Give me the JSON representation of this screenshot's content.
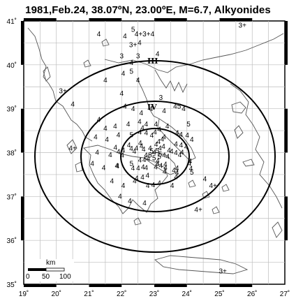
{
  "title": "1981,Feb.24, 38.07ºN, 23.00ºE, M=6.7, Alkyonides",
  "longitude_ticks": [
    "19˚",
    "20˚",
    "21˚",
    "22˚",
    "23˚",
    "24˚",
    "25˚",
    "26˚",
    "27˚"
  ],
  "latitude_ticks": [
    "41˚",
    "40˚",
    "39˚",
    "38˚",
    "37˚",
    "36˚",
    "35˚"
  ],
  "isoseismal_labels": [
    "III",
    "IV"
  ],
  "scale_bar": {
    "unit": "km",
    "ticks": [
      "0",
      "50",
      "100"
    ]
  },
  "intensity_marks": [
    {
      "t": "4",
      "lon": 21.3,
      "lat": 40.65
    },
    {
      "t": "5",
      "lon": 22.35,
      "lat": 40.75
    },
    {
      "t": "4",
      "lon": 22.1,
      "lat": 40.6
    },
    {
      "t": "4+3+4",
      "lon": 22.7,
      "lat": 40.65
    },
    {
      "t": "4",
      "lon": 22.55,
      "lat": 40.45
    },
    {
      "t": "3+",
      "lon": 22.35,
      "lat": 40.4
    },
    {
      "t": "3+",
      "lon": 25.7,
      "lat": 40.85
    },
    {
      "t": "3",
      "lon": 22.0,
      "lat": 40.15
    },
    {
      "t": "3",
      "lon": 22.5,
      "lat": 40.15
    },
    {
      "t": "4",
      "lon": 22.3,
      "lat": 40.0
    },
    {
      "t": "4",
      "lon": 23.1,
      "lat": 40.2
    },
    {
      "t": "4",
      "lon": 21.5,
      "lat": 39.6
    },
    {
      "t": "5",
      "lon": 22.3,
      "lat": 39.8
    },
    {
      "t": "4",
      "lon": 22.05,
      "lat": 39.75
    },
    {
      "t": "4",
      "lon": 22.5,
      "lat": 39.6
    },
    {
      "t": "4",
      "lon": 22.0,
      "lat": 39.3
    },
    {
      "t": "3+",
      "lon": 20.2,
      "lat": 39.35
    },
    {
      "t": "4",
      "lon": 20.5,
      "lat": 39.05
    },
    {
      "t": "3",
      "lon": 23.2,
      "lat": 39.2
    },
    {
      "t": "4",
      "lon": 22.1,
      "lat": 39.0
    },
    {
      "t": "4",
      "lon": 22.35,
      "lat": 38.95
    },
    {
      "t": "4",
      "lon": 22.6,
      "lat": 38.85
    },
    {
      "t": "4",
      "lon": 22.9,
      "lat": 38.95
    },
    {
      "t": "4",
      "lon": 23.3,
      "lat": 38.9
    },
    {
      "t": "45",
      "lon": 23.7,
      "lat": 39.0
    },
    {
      "t": "4",
      "lon": 23.9,
      "lat": 38.95
    },
    {
      "t": "4",
      "lon": 21.3,
      "lat": 38.7
    },
    {
      "t": "4",
      "lon": 21.5,
      "lat": 38.5
    },
    {
      "t": "4",
      "lon": 21.8,
      "lat": 38.55
    },
    {
      "t": "4",
      "lon": 22.2,
      "lat": 38.6
    },
    {
      "t": "4",
      "lon": 22.55,
      "lat": 38.65
    },
    {
      "t": "4",
      "lon": 23.05,
      "lat": 38.6
    },
    {
      "t": "4",
      "lon": 23.4,
      "lat": 38.55
    },
    {
      "t": "5",
      "lon": 24.05,
      "lat": 38.6
    },
    {
      "t": "4",
      "lon": 21.2,
      "lat": 38.3
    },
    {
      "t": "4",
      "lon": 21.55,
      "lat": 38.25
    },
    {
      "t": "4",
      "lon": 21.9,
      "lat": 38.35
    },
    {
      "t": "5",
      "lon": 22.3,
      "lat": 38.35
    },
    {
      "t": "4",
      "lon": 22.75,
      "lat": 38.4
    },
    {
      "t": "4",
      "lon": 23.3,
      "lat": 38.3
    },
    {
      "t": "4",
      "lon": 23.7,
      "lat": 38.4
    },
    {
      "t": "4",
      "lon": 24.15,
      "lat": 38.25
    },
    {
      "t": "4+",
      "lon": 20.5,
      "lat": 38.05
    },
    {
      "t": "4",
      "lon": 21.25,
      "lat": 37.95
    },
    {
      "t": "4",
      "lon": 21.65,
      "lat": 37.9
    },
    {
      "t": "4",
      "lon": 22.05,
      "lat": 38.0
    },
    {
      "t": "4",
      "lon": 22.45,
      "lat": 38.05
    },
    {
      "t": "4",
      "lon": 23.0,
      "lat": 37.95
    },
    {
      "t": "4",
      "lon": 23.45,
      "lat": 38.0
    },
    {
      "t": "4",
      "lon": 23.85,
      "lat": 37.95
    },
    {
      "t": "4",
      "lon": 24.1,
      "lat": 37.75
    },
    {
      "t": "4",
      "lon": 21.1,
      "lat": 37.7
    },
    {
      "t": "4",
      "lon": 21.45,
      "lat": 37.6
    },
    {
      "t": "4",
      "lon": 21.85,
      "lat": 37.65
    },
    {
      "t": "5",
      "lon": 22.3,
      "lat": 37.7
    },
    {
      "t": "4",
      "lon": 22.75,
      "lat": 37.6
    },
    {
      "t": "4",
      "lon": 23.2,
      "lat": 37.65
    },
    {
      "t": "4",
      "lon": 23.6,
      "lat": 37.55
    },
    {
      "t": "5",
      "lon": 24.15,
      "lat": 37.5
    },
    {
      "t": "4",
      "lon": 24.55,
      "lat": 37.35
    },
    {
      "t": "4+",
      "lon": 24.8,
      "lat": 37.2
    },
    {
      "t": "4",
      "lon": 21.7,
      "lat": 37.3
    },
    {
      "t": "4",
      "lon": 22.05,
      "lat": 37.2
    },
    {
      "t": "4",
      "lon": 22.4,
      "lat": 37.3
    },
    {
      "t": "4",
      "lon": 22.8,
      "lat": 37.2
    },
    {
      "t": "4",
      "lon": 23.15,
      "lat": 37.25
    },
    {
      "t": "4",
      "lon": 23.55,
      "lat": 37.2
    },
    {
      "t": "4",
      "lon": 21.95,
      "lat": 36.95
    },
    {
      "t": "4",
      "lon": 22.25,
      "lat": 36.85
    },
    {
      "t": "4",
      "lon": 22.7,
      "lat": 36.8
    },
    {
      "t": "4+",
      "lon": 24.35,
      "lat": 36.65
    },
    {
      "t": "3+",
      "lon": 25.1,
      "lat": 35.25
    }
  ]
}
